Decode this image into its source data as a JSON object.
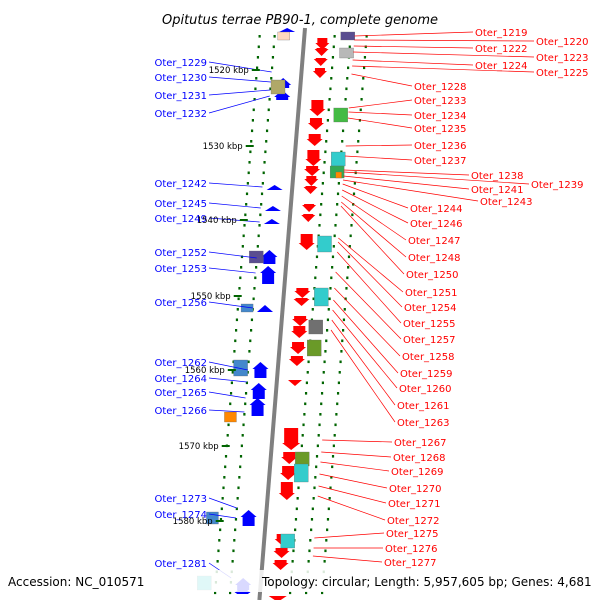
{
  "title": "Opitutus terrae PB90-1, complete genome",
  "footer": {
    "accession": "Accession: NC_010571",
    "summary": "Topology: circular; Length: 5,957,605 bp; Genes: 4,681"
  },
  "colors": {
    "reverse_strand": "#ff0000",
    "forward_strand": "#0000ff",
    "backbone": "#808080",
    "tick": "#006400",
    "dot": "#006400"
  },
  "scale_labels": [
    "1520 kbp",
    "1530 kbp",
    "1540 kbp",
    "1550 kbp",
    "1560 kbp",
    "1570 kbp",
    "1580 kbp"
  ],
  "left_labels": [
    "Oter_1229",
    "Oter_1230",
    "Oter_1231",
    "Oter_1232",
    "Oter_1242",
    "Oter_1245",
    "Oter_1249",
    "Oter_1252",
    "Oter_1253",
    "Oter_1256",
    "Oter_1262",
    "Oter_1264",
    "Oter_1265",
    "Oter_1266",
    "Oter_1273",
    "Oter_1274",
    "Oter_1281"
  ],
  "right_labels": [
    "Oter_1219",
    "Oter_1220",
    "Oter_1222",
    "Oter_1223",
    "Oter_1224",
    "Oter_1225",
    "Oter_1228",
    "Oter_1233",
    "Oter_1234",
    "Oter_1235",
    "Oter_1236",
    "Oter_1237",
    "Oter_1238",
    "Oter_1239",
    "Oter_1241",
    "Oter_1243",
    "Oter_1244",
    "Oter_1246",
    "Oter_1247",
    "Oter_1248",
    "Oter_1250",
    "Oter_1251",
    "Oter_1254",
    "Oter_1255",
    "Oter_1257",
    "Oter_1258",
    "Oter_1259",
    "Oter_1260",
    "Oter_1261",
    "Oter_1263",
    "Oter_1267",
    "Oter_1268",
    "Oter_1269",
    "Oter_1270",
    "Oter_1271",
    "Oter_1272",
    "Oter_1275",
    "Oter_1276",
    "Oter_1277"
  ]
}
